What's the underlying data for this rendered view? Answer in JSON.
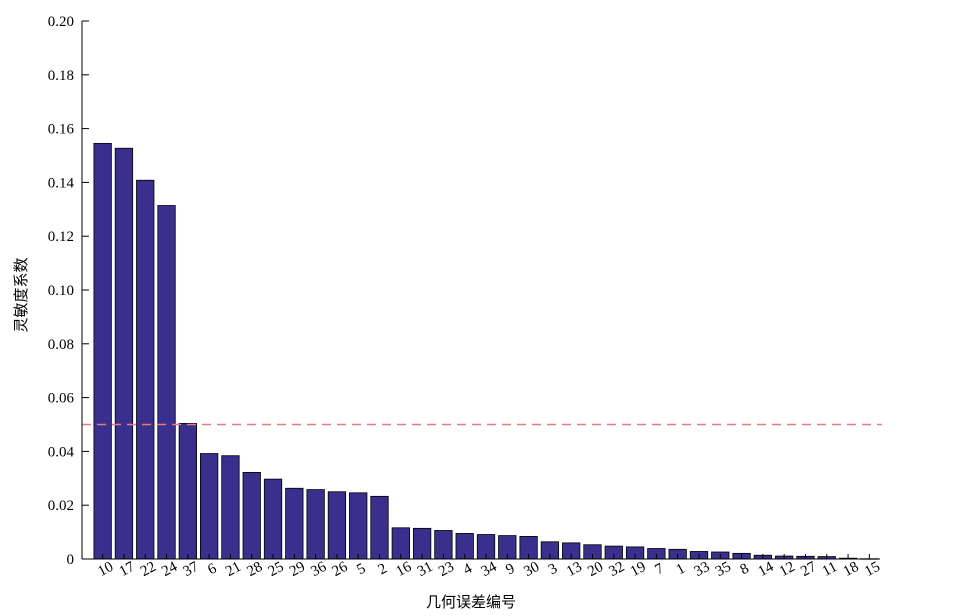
{
  "chart_data": {
    "type": "bar",
    "xlabel": "几何误差编号",
    "ylabel": "灵敏度系数",
    "ylim": [
      0,
      0.2
    ],
    "yticks": [
      "0",
      "0.02",
      "0.04",
      "0.06",
      "0.08",
      "0.10",
      "0.12",
      "0.14",
      "0.16",
      "0.18",
      "0.20"
    ],
    "categories": [
      "10",
      "17",
      "22",
      "24",
      "37",
      "6",
      "21",
      "28",
      "25",
      "29",
      "36",
      "26",
      "5",
      "2",
      "16",
      "31",
      "23",
      "4",
      "34",
      "9",
      "30",
      "3",
      "13",
      "20",
      "32",
      "19",
      "7",
      "1",
      "33",
      "35",
      "8",
      "14",
      "12",
      "27",
      "11",
      "18",
      "15"
    ],
    "values": [
      0.1545,
      0.1527,
      0.1408,
      0.1314,
      0.0504,
      0.0392,
      0.0384,
      0.0322,
      0.0297,
      0.0263,
      0.0258,
      0.025,
      0.0246,
      0.0233,
      0.0116,
      0.0114,
      0.0106,
      0.0095,
      0.0091,
      0.0087,
      0.0084,
      0.0064,
      0.006,
      0.0053,
      0.0048,
      0.0045,
      0.0039,
      0.0036,
      0.0028,
      0.0026,
      0.0021,
      0.0014,
      0.0011,
      0.001,
      0.0009,
      0.0003,
      0.0001
    ],
    "reference_line": {
      "value": 0.05,
      "style": "dashed",
      "color": "#e87a7a"
    },
    "bar_color": "#3a2f8c",
    "grid": false,
    "legend": false
  }
}
